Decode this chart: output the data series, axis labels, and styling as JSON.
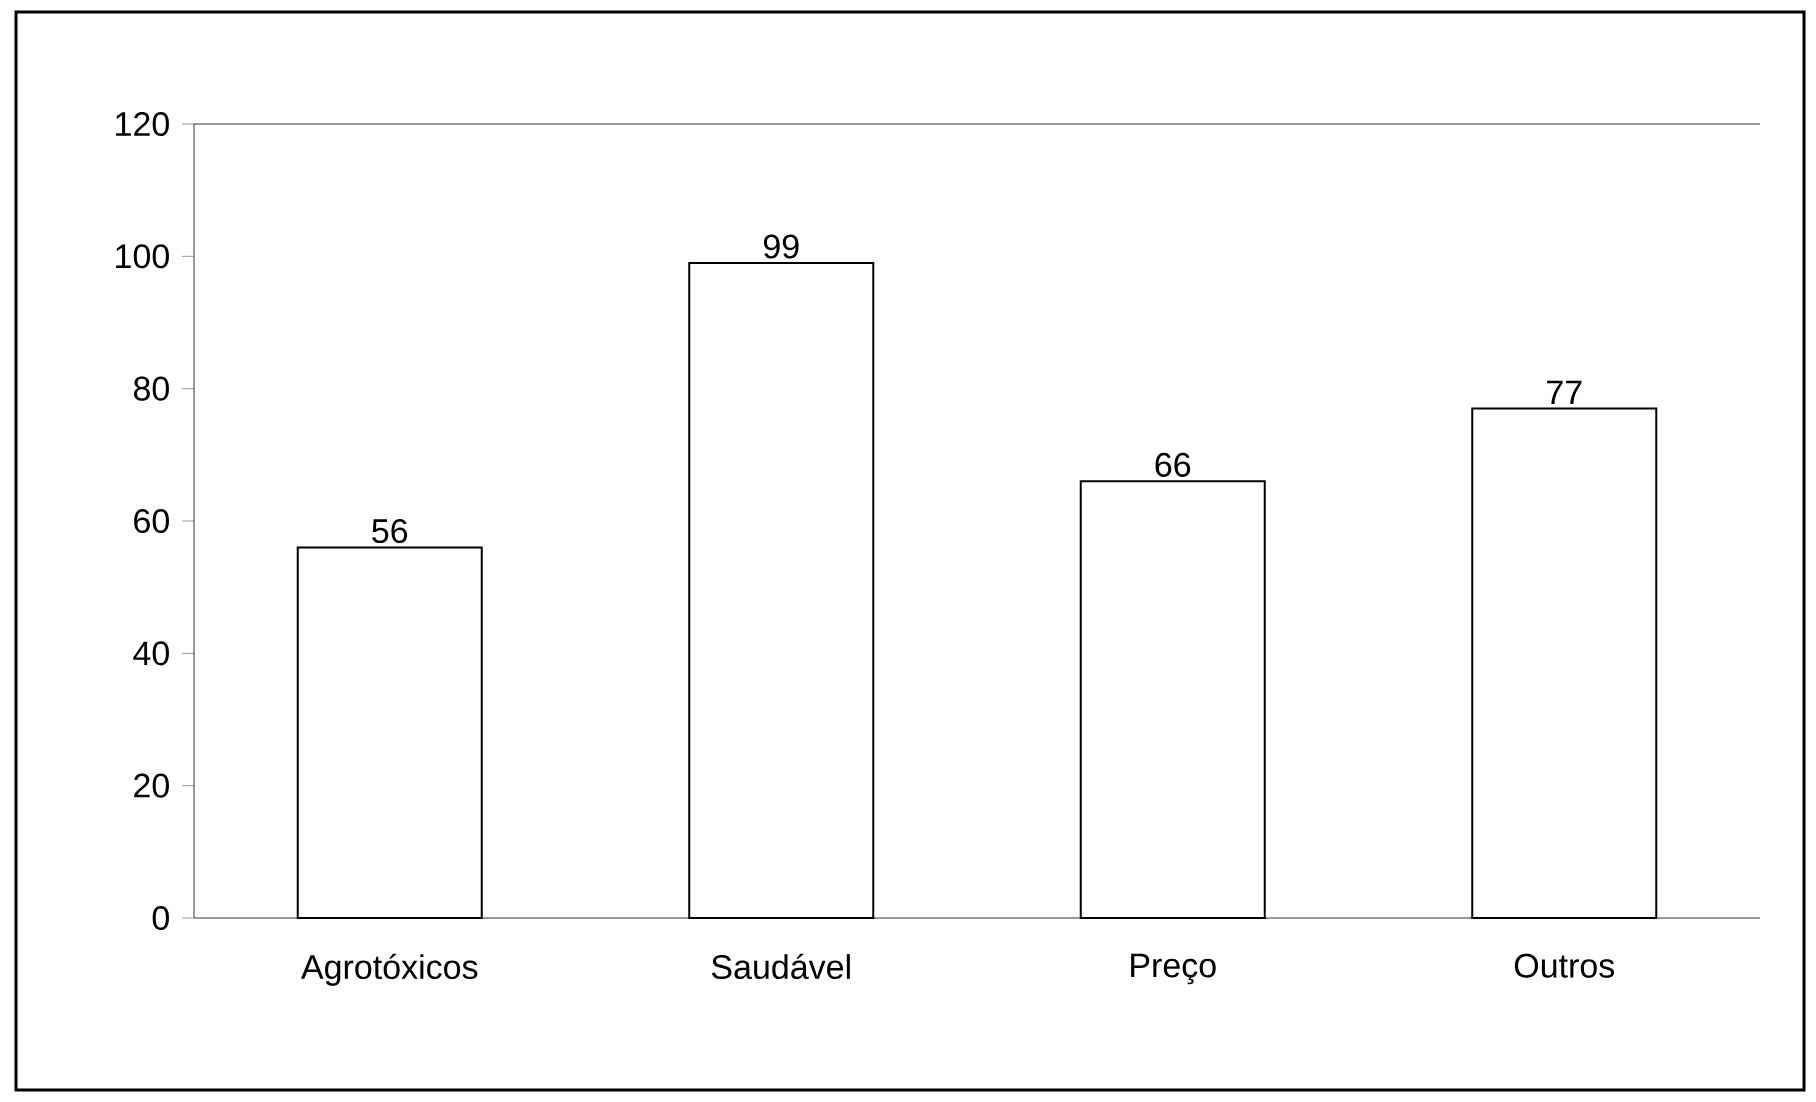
{
  "chart_data": {
    "type": "bar",
    "categories": [
      "Agrotóxicos",
      "Saudável",
      "Preço",
      "Outros"
    ],
    "values": [
      56,
      99,
      66,
      77
    ],
    "color": "#ffffff",
    "ylim": [
      0,
      120
    ],
    "yticks": [
      0,
      20,
      40,
      60,
      80,
      100,
      120
    ],
    "data_labels": true
  }
}
